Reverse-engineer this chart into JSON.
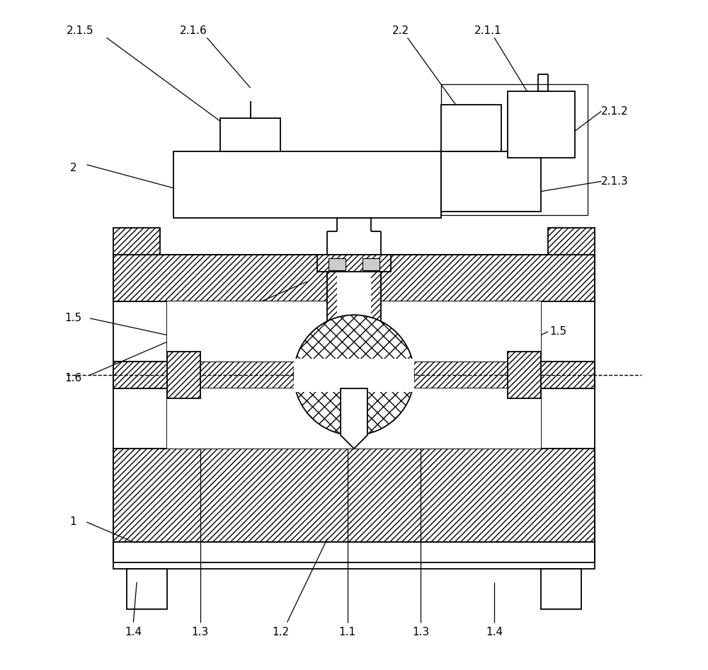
{
  "bg_color": "#ffffff",
  "lw": 1.3,
  "lw_thin": 0.8,
  "fs": 11,
  "fig_w": 10.0,
  "fig_h": 9.47
}
